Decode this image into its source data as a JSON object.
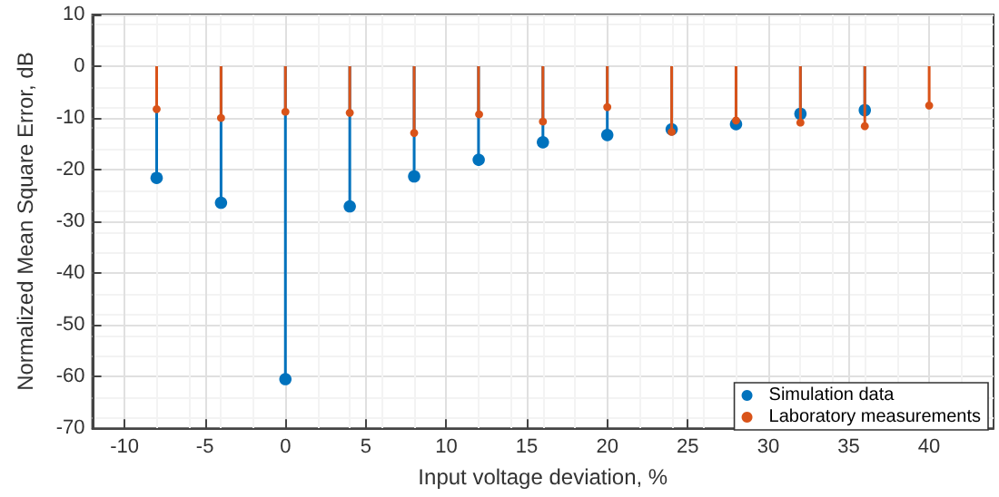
{
  "chart_data": {
    "type": "lollipop",
    "xlabel": "Input voltage deviation, %",
    "ylabel": "Normalized Mean Square Error, dB",
    "x": [
      -8,
      -4,
      0,
      4,
      8,
      12,
      16,
      20,
      24,
      28,
      32,
      36,
      40
    ],
    "series": [
      {
        "name": "Simulation data",
        "color": "#0072bd",
        "values": [
          -21.6,
          -26.4,
          -60.5,
          -27.1,
          -21.3,
          -17.8,
          -14.7,
          -13.3,
          -12.2,
          -11.2,
          -9.2,
          -8.5,
          null
        ]
      },
      {
        "name": "Laboratory measurements",
        "color": "#d95319",
        "values": [
          -8.3,
          -10.0,
          -8.8,
          -9.0,
          -12.9,
          -8.9,
          -10.7,
          -7.9,
          -12.7,
          -10.5,
          -10.9,
          -11.6,
          -7.6
        ]
      }
    ],
    "xlim": [
      -12,
      44
    ],
    "xticks": [
      -10,
      -5,
      0,
      5,
      10,
      15,
      20,
      25,
      30,
      35,
      40
    ],
    "ylim": [
      -70,
      10
    ],
    "yticks": [
      -70,
      -60,
      -50,
      -40,
      -30,
      -20,
      -10,
      0,
      10
    ],
    "grid": true,
    "legend": "bottom right",
    "marker": "circle"
  }
}
